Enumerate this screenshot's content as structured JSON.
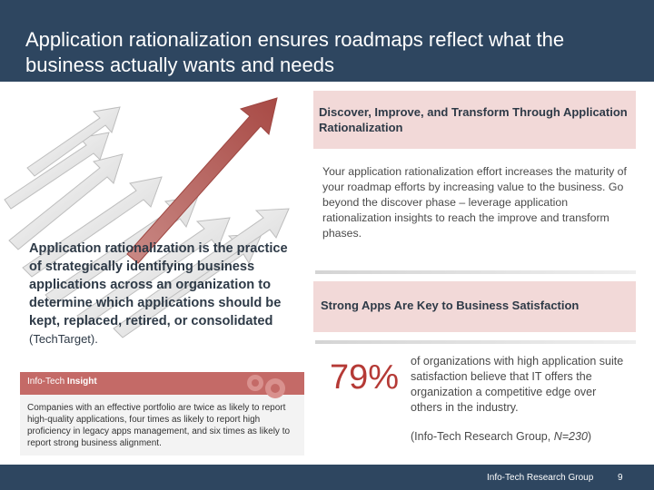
{
  "header": {
    "title": "Application rationalization ensures roadmaps reflect what the business actually wants and needs"
  },
  "callout_top": {
    "text": "Discover, Improve, and Transform Through Application Rationalization"
  },
  "body_text": "Your application rationalization effort increases the maturity of your roadmap efforts by increasing value to the business. Go beyond the discover phase – leverage application rationalization insights to reach the improve and transform phases.",
  "definition": {
    "text": "Application rationalization is the practice of strategically identifying business applications across an organization to determine which applications should be kept, replaced, retired, or consolidated",
    "citation": "(TechTarget)."
  },
  "callout_mid": {
    "text": "Strong Apps Are Key to Business Satisfaction"
  },
  "stat": {
    "value": "79%",
    "text": "of organizations with high application suite satisfaction believe that IT offers the organization a competitive edge over others in the industry.",
    "source_prefix": "(Info-Tech Research Group, ",
    "source_n": "N=230",
    "source_suffix": ")"
  },
  "insight": {
    "brand": "Info-Tech",
    "label": "Insight",
    "text": "Companies with an effective portfolio are twice as likely to report high-quality applications, four times as likely to report high proficiency in legacy apps management, and six times as likely to report strong business alignment."
  },
  "footer": {
    "org": "Info-Tech Research Group",
    "page": "9"
  },
  "colors": {
    "header_bg": "#2e4660",
    "accent_red": "#b53a36",
    "callout_pink": "#f2d9d8"
  }
}
